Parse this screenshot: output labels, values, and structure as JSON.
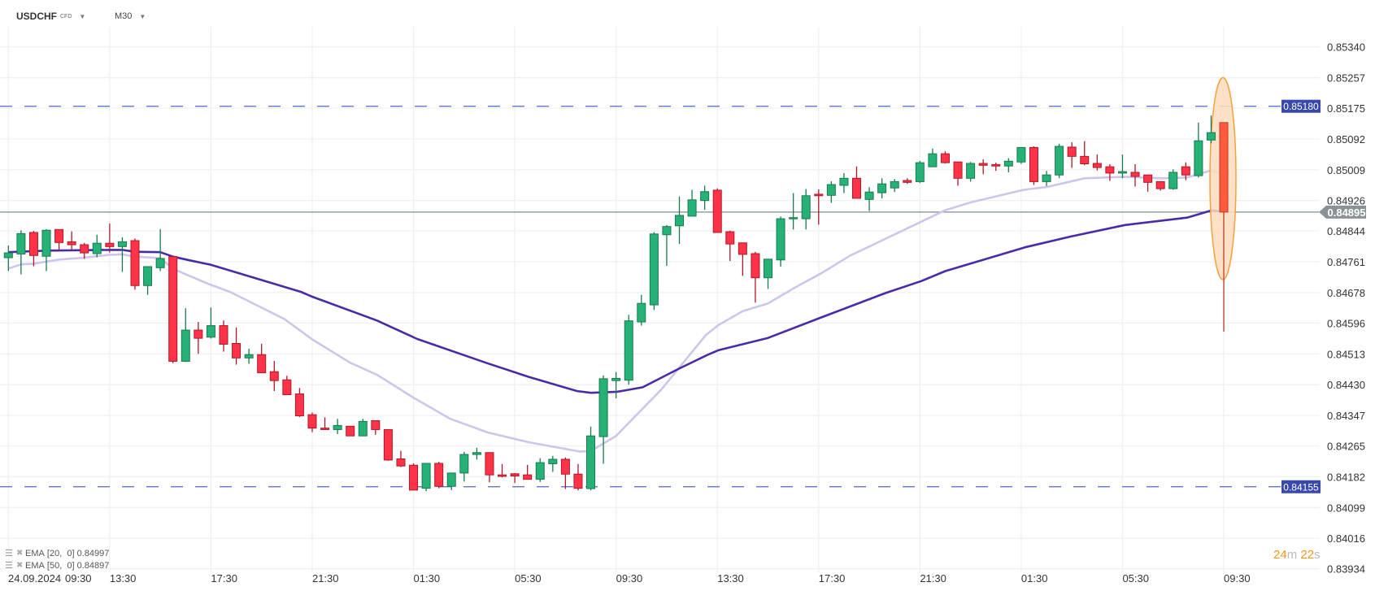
{
  "header": {
    "symbol": "USDCHF",
    "symbol_type": "CFD",
    "timeframe": "M30"
  },
  "indicators": [
    {
      "label": "EMA",
      "params": "[20,  0]",
      "value": "0.84997",
      "color": "#cfc5ea"
    },
    {
      "label": "EMA",
      "params": "[50,  0]",
      "value": "0.84897",
      "color": "#4b2aa8"
    }
  ],
  "timer": {
    "minutes": "24",
    "m": "m",
    "seconds": "22",
    "s": "s"
  },
  "colors": {
    "up": "#26b276",
    "up_border": "#1a7a4f",
    "down": "#ff3347",
    "down_border": "#b0182a",
    "live": "#ff5a3c",
    "level_line": "#5565c8",
    "level_tag": "#3949ab",
    "price_tag": "#8a9296",
    "highlight_fill": "#fddcbc",
    "highlight_stroke": "#f5a040"
  },
  "chart_data": {
    "type": "candlestick",
    "title": "USDCHF CFD M30",
    "start": "24.09.2024 09:30",
    "interval_minutes": 30,
    "ylim": [
      0.83934,
      0.8534
    ],
    "yticks": [
      "0.85340",
      "0.85257",
      "0.85175",
      "0.85092",
      "0.85009",
      "0.84926",
      "0.84844",
      "0.84761",
      "0.84678",
      "0.84596",
      "0.84513",
      "0.84430",
      "0.84347",
      "0.84265",
      "0.84182",
      "0.84099",
      "0.84016",
      "0.83934"
    ],
    "xdate": "24.09.2024",
    "xticks": [
      {
        "i": 0,
        "label": "09:30"
      },
      {
        "i": 8,
        "label": "13:30"
      },
      {
        "i": 16,
        "label": "17:30"
      },
      {
        "i": 24,
        "label": "21:30"
      },
      {
        "i": 32,
        "label": "01:30"
      },
      {
        "i": 40,
        "label": "05:30"
      },
      {
        "i": 48,
        "label": "09:30"
      },
      {
        "i": 56,
        "label": "13:30"
      },
      {
        "i": 64,
        "label": "17:30"
      },
      {
        "i": 72,
        "label": "21:30"
      },
      {
        "i": 80,
        "label": "01:30"
      },
      {
        "i": 88,
        "label": "05:30"
      },
      {
        "i": 96,
        "label": "09:30"
      }
    ],
    "ohlc": [
      [
        0.84772,
        0.84805,
        0.84736,
        0.84785
      ],
      [
        0.84782,
        0.84846,
        0.84727,
        0.84837
      ],
      [
        0.8484,
        0.84844,
        0.84749,
        0.84778
      ],
      [
        0.84776,
        0.84849,
        0.84736,
        0.84846
      ],
      [
        0.84848,
        0.84848,
        0.84791,
        0.84813
      ],
      [
        0.84815,
        0.84843,
        0.84791,
        0.84807
      ],
      [
        0.84807,
        0.84812,
        0.84769,
        0.84785
      ],
      [
        0.84783,
        0.84834,
        0.84773,
        0.84811
      ],
      [
        0.84811,
        0.84864,
        0.84786,
        0.84802
      ],
      [
        0.84802,
        0.84827,
        0.84734,
        0.84815
      ],
      [
        0.84818,
        0.84824,
        0.84686,
        0.84697
      ],
      [
        0.84697,
        0.84748,
        0.84672,
        0.84748
      ],
      [
        0.84745,
        0.84849,
        0.84736,
        0.8477
      ],
      [
        0.84775,
        0.84775,
        0.84488,
        0.84493
      ],
      [
        0.84493,
        0.84636,
        0.84491,
        0.84577
      ],
      [
        0.84577,
        0.84599,
        0.84513,
        0.84555
      ],
      [
        0.84558,
        0.84638,
        0.84554,
        0.84589
      ],
      [
        0.84589,
        0.84603,
        0.84519,
        0.84539
      ],
      [
        0.84541,
        0.84584,
        0.84484,
        0.84502
      ],
      [
        0.84502,
        0.84527,
        0.84486,
        0.84511
      ],
      [
        0.84511,
        0.8454,
        0.84462,
        0.84462
      ],
      [
        0.84465,
        0.84494,
        0.84413,
        0.84441
      ],
      [
        0.84443,
        0.84454,
        0.84403,
        0.84403
      ],
      [
        0.84405,
        0.84421,
        0.84343,
        0.84346
      ],
      [
        0.84349,
        0.84355,
        0.84302,
        0.84313
      ],
      [
        0.84313,
        0.84342,
        0.84309,
        0.84309
      ],
      [
        0.84309,
        0.84338,
        0.84297,
        0.8432
      ],
      [
        0.84318,
        0.84318,
        0.84292,
        0.84292
      ],
      [
        0.84292,
        0.84338,
        0.84292,
        0.84331
      ],
      [
        0.84333,
        0.84333,
        0.84295,
        0.84309
      ],
      [
        0.84309,
        0.84309,
        0.84225,
        0.84227
      ],
      [
        0.8423,
        0.84252,
        0.84208,
        0.84211
      ],
      [
        0.84213,
        0.84218,
        0.84146,
        0.84146
      ],
      [
        0.84151,
        0.84218,
        0.84143,
        0.84218
      ],
      [
        0.84218,
        0.84222,
        0.84151,
        0.84156
      ],
      [
        0.84156,
        0.84192,
        0.84146,
        0.84192
      ],
      [
        0.84192,
        0.84249,
        0.84169,
        0.84242
      ],
      [
        0.84242,
        0.8426,
        0.84228,
        0.84247
      ],
      [
        0.84247,
        0.84248,
        0.84167,
        0.84187
      ],
      [
        0.84187,
        0.84216,
        0.8418,
        0.84183
      ],
      [
        0.8419,
        0.84192,
        0.84165,
        0.84184
      ],
      [
        0.84187,
        0.84214,
        0.84175,
        0.84175
      ],
      [
        0.84175,
        0.84232,
        0.84168,
        0.8422
      ],
      [
        0.84217,
        0.84238,
        0.84195,
        0.84229
      ],
      [
        0.84229,
        0.84234,
        0.84149,
        0.84189
      ],
      [
        0.84189,
        0.84216,
        0.84145,
        0.84151
      ],
      [
        0.8415,
        0.84317,
        0.84145,
        0.84292
      ],
      [
        0.8429,
        0.84455,
        0.84217,
        0.84446
      ],
      [
        0.84441,
        0.84464,
        0.84393,
        0.84447
      ],
      [
        0.84442,
        0.84618,
        0.8443,
        0.84602
      ],
      [
        0.84599,
        0.84672,
        0.84589,
        0.84649
      ],
      [
        0.84645,
        0.84841,
        0.84631,
        0.84836
      ],
      [
        0.84834,
        0.8486,
        0.8475,
        0.84856
      ],
      [
        0.84858,
        0.84937,
        0.84809,
        0.84886
      ],
      [
        0.84884,
        0.84955,
        0.84884,
        0.84928
      ],
      [
        0.84926,
        0.84966,
        0.84901,
        0.8495
      ],
      [
        0.84954,
        0.84959,
        0.8484,
        0.8484
      ],
      [
        0.84842,
        0.84845,
        0.84763,
        0.84809
      ],
      [
        0.84812,
        0.84812,
        0.84723,
        0.84781
      ],
      [
        0.84783,
        0.84788,
        0.84651,
        0.84718
      ],
      [
        0.84718,
        0.84768,
        0.84688,
        0.84768
      ],
      [
        0.84766,
        0.84883,
        0.84748,
        0.84877
      ],
      [
        0.84877,
        0.84946,
        0.84848,
        0.8488
      ],
      [
        0.84877,
        0.84957,
        0.84848,
        0.84939
      ],
      [
        0.84943,
        0.84956,
        0.84861,
        0.84939
      ],
      [
        0.8494,
        0.84978,
        0.8492,
        0.84969
      ],
      [
        0.84967,
        0.85,
        0.84946,
        0.84986
      ],
      [
        0.84986,
        0.85018,
        0.84932,
        0.84932
      ],
      [
        0.84929,
        0.84962,
        0.84898,
        0.84949
      ],
      [
        0.84947,
        0.84986,
        0.84932,
        0.84971
      ],
      [
        0.8496,
        0.84984,
        0.84949,
        0.84977
      ],
      [
        0.8498,
        0.84986,
        0.84971,
        0.84975
      ],
      [
        0.84977,
        0.85033,
        0.84973,
        0.85028
      ],
      [
        0.85017,
        0.85066,
        0.85017,
        0.85052
      ],
      [
        0.85052,
        0.85059,
        0.85026,
        0.85028
      ],
      [
        0.8503,
        0.8503,
        0.84966,
        0.84986
      ],
      [
        0.84986,
        0.8503,
        0.84977,
        0.85026
      ],
      [
        0.85026,
        0.85037,
        0.84997,
        0.85021
      ],
      [
        0.85023,
        0.85028,
        0.85006,
        0.85019
      ],
      [
        0.85019,
        0.8504,
        0.85002,
        0.85032
      ],
      [
        0.8503,
        0.8507,
        0.85025,
        0.85069
      ],
      [
        0.85069,
        0.85072,
        0.84968,
        0.84977
      ],
      [
        0.84977,
        0.85006,
        0.84965,
        0.84995
      ],
      [
        0.84995,
        0.85079,
        0.84986,
        0.85072
      ],
      [
        0.8507,
        0.85083,
        0.85014,
        0.85045
      ],
      [
        0.85045,
        0.85086,
        0.85021,
        0.85025
      ],
      [
        0.85026,
        0.8505,
        0.85007,
        0.85015
      ],
      [
        0.85017,
        0.85024,
        0.84979,
        0.85
      ],
      [
        0.85,
        0.8505,
        0.84986,
        0.85004
      ],
      [
        0.85002,
        0.85024,
        0.84964,
        0.84991
      ],
      [
        0.84995,
        0.84995,
        0.8495,
        0.84975
      ],
      [
        0.84977,
        0.84977,
        0.84953,
        0.84958
      ],
      [
        0.84958,
        0.8501,
        0.84955,
        0.85002
      ],
      [
        0.85017,
        0.85029,
        0.84981,
        0.84995
      ],
      [
        0.84993,
        0.85136,
        0.84988,
        0.85087
      ],
      [
        0.85089,
        0.85155,
        0.8508,
        0.85109
      ],
      [
        0.85136,
        0.85136,
        0.84573,
        0.84895
      ]
    ],
    "ema20": [
      [
        0,
        0.84743
      ],
      [
        1,
        0.84754
      ],
      [
        2,
        0.84756
      ],
      [
        4,
        0.84767
      ],
      [
        6,
        0.84772
      ],
      [
        8,
        0.8478
      ],
      [
        9,
        0.84781
      ],
      [
        10,
        0.84775
      ],
      [
        12,
        0.84771
      ],
      [
        13,
        0.84742
      ],
      [
        15,
        0.84713
      ],
      [
        16,
        0.84699
      ],
      [
        17.5,
        0.8468
      ],
      [
        21.8,
        0.84607
      ],
      [
        24,
        0.84552
      ],
      [
        27,
        0.84489
      ],
      [
        29.1,
        0.84457
      ],
      [
        32,
        0.84395
      ],
      [
        34.9,
        0.84338
      ],
      [
        37.9,
        0.84301
      ],
      [
        41.1,
        0.84275
      ],
      [
        45.1,
        0.8425
      ],
      [
        46,
        0.84251
      ],
      [
        48,
        0.84292
      ],
      [
        51.6,
        0.84418
      ],
      [
        55.1,
        0.84564
      ],
      [
        56.1,
        0.84591
      ],
      [
        58,
        0.84628
      ],
      [
        60,
        0.84649
      ],
      [
        62.1,
        0.84691
      ],
      [
        64.2,
        0.8473
      ],
      [
        66.5,
        0.84778
      ],
      [
        70.2,
        0.84838
      ],
      [
        72.1,
        0.84869
      ],
      [
        74,
        0.849
      ],
      [
        76,
        0.84921
      ],
      [
        80.2,
        0.84955
      ],
      [
        82.1,
        0.84963
      ],
      [
        85,
        0.84986
      ],
      [
        88.2,
        0.8499
      ],
      [
        91.2,
        0.84986
      ],
      [
        93.1,
        0.84988
      ],
      [
        95,
        0.85007
      ],
      [
        96,
        0.84997
      ]
    ],
    "ema50": [
      [
        0,
        0.84787
      ],
      [
        3,
        0.84791
      ],
      [
        8,
        0.84793
      ],
      [
        9,
        0.84793
      ],
      [
        10,
        0.84788
      ],
      [
        12,
        0.84787
      ],
      [
        13,
        0.84775
      ],
      [
        14.3,
        0.84765
      ],
      [
        16,
        0.84753
      ],
      [
        23.1,
        0.8468
      ],
      [
        24,
        0.84667
      ],
      [
        29.1,
        0.84603
      ],
      [
        32.3,
        0.84553
      ],
      [
        37.9,
        0.84487
      ],
      [
        41.1,
        0.84451
      ],
      [
        44.9,
        0.84413
      ],
      [
        46,
        0.84408
      ],
      [
        48.1,
        0.84411
      ],
      [
        48.8,
        0.84415
      ],
      [
        50.1,
        0.84423
      ],
      [
        52.9,
        0.84472
      ],
      [
        55.2,
        0.8451
      ],
      [
        56.1,
        0.84523
      ],
      [
        60,
        0.84556
      ],
      [
        64.2,
        0.84611
      ],
      [
        69.3,
        0.84677
      ],
      [
        72.1,
        0.84709
      ],
      [
        74,
        0.84736
      ],
      [
        80.3,
        0.848
      ],
      [
        83.9,
        0.84829
      ],
      [
        88.2,
        0.8486
      ],
      [
        93.1,
        0.8488
      ],
      [
        95,
        0.84899
      ],
      [
        96,
        0.84897
      ]
    ],
    "levels": [
      {
        "name": "resistance",
        "price": 0.8518,
        "label": "0.85180"
      },
      {
        "name": "support",
        "price": 0.84155,
        "label": "0.84155"
      }
    ],
    "current_price": {
      "price": 0.84895,
      "label": "0.84895"
    },
    "highlight": {
      "candle": 96,
      "price_top": 0.85257,
      "price_bottom": 0.84713
    }
  }
}
